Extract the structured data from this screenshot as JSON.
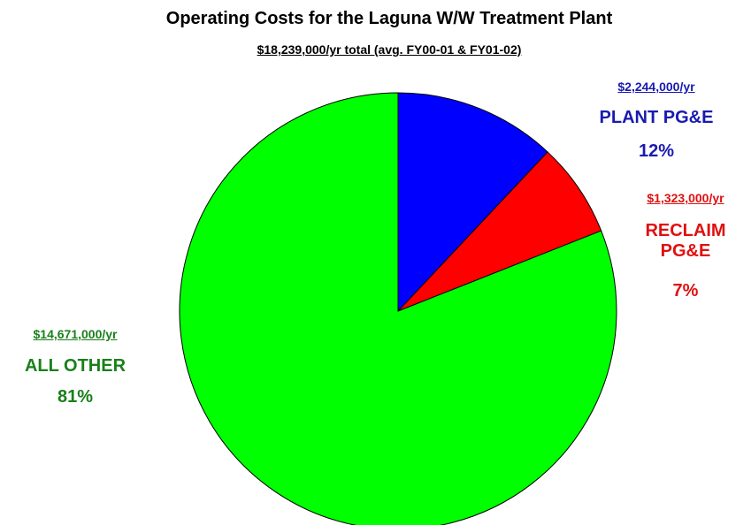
{
  "chart_data": {
    "type": "pie",
    "title": "Operating Costs for the Laguna W/W Treatment Plant",
    "subtitle": "$18,239,000/yr total (avg. FY00-01 & FY01-02)",
    "categories": [
      "PLANT PG&E",
      "RECLAIM PG&E",
      "ALL OTHER"
    ],
    "values": [
      12,
      7,
      81
    ],
    "value_labels": [
      "12%",
      "7%",
      "81%"
    ],
    "amount_labels": [
      "$2,244,000/yr",
      "$1,323,000/yr",
      "$14,671,000/yr"
    ],
    "colors": [
      "#0000ff",
      "#ff0000",
      "#00ff00"
    ],
    "label_colors": [
      "#1a1ab0",
      "#e01010",
      "#1a801a"
    ]
  }
}
